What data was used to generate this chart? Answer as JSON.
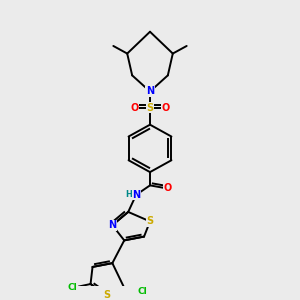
{
  "bg_color": "#ebebeb",
  "bond_color": "#000000",
  "bond_width": 1.4,
  "atom_colors": {
    "N": "#0000ff",
    "S": "#ccaa00",
    "O": "#ff0000",
    "Cl": "#00bb00",
    "H": "#008888",
    "C": "#000000"
  },
  "font_size": 7.0,
  "figsize": [
    3.0,
    3.0
  ],
  "dpi": 100
}
